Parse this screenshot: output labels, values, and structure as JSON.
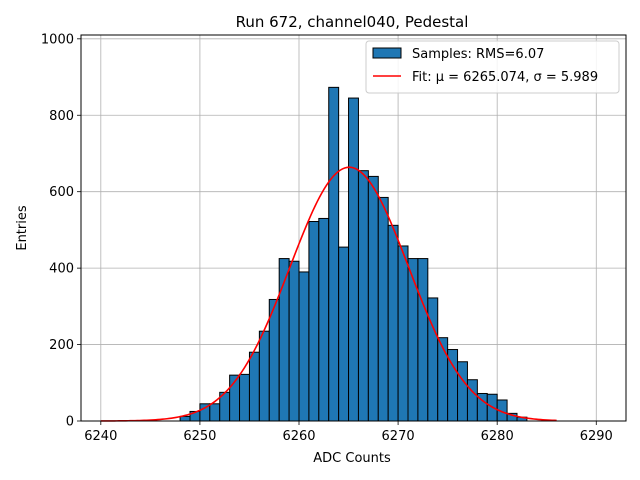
{
  "chart_data": {
    "type": "bar",
    "title": "Run 672, channel040, Pedestal",
    "xlabel": "ADC Counts",
    "ylabel": "Entries",
    "xlim": [
      6238,
      6293
    ],
    "ylim": [
      0,
      1010
    ],
    "x_ticks": [
      6240,
      6250,
      6260,
      6270,
      6280,
      6290
    ],
    "y_ticks": [
      0,
      200,
      400,
      600,
      800,
      1000
    ],
    "grid": true,
    "legend_position": "top-right",
    "histogram": {
      "name": "Samples: RMS=6.07",
      "color": "#1f77b4",
      "bin_edges": [
        6248,
        6249,
        6250,
        6251,
        6252,
        6253,
        6254,
        6255,
        6256,
        6257,
        6258,
        6259,
        6260,
        6261,
        6262,
        6263,
        6264,
        6265,
        6266,
        6267,
        6268,
        6269,
        6270,
        6271,
        6272,
        6273,
        6274,
        6275,
        6276,
        6277,
        6278,
        6279,
        6280,
        6281,
        6282,
        6283
      ],
      "counts": [
        12,
        25,
        45,
        45,
        75,
        120,
        122,
        180,
        235,
        318,
        425,
        418,
        390,
        522,
        530,
        873,
        455,
        845,
        655,
        640,
        585,
        512,
        458,
        425,
        425,
        322,
        218,
        187,
        155,
        108,
        72,
        70,
        55,
        20,
        10
      ]
    },
    "fit": {
      "name": "Fit: μ = 6265.074, σ = 5.989",
      "color": "#ff0000",
      "mu": 6265.074,
      "sigma": 5.989,
      "amplitude": 664,
      "x_range": [
        6240,
        6286
      ]
    }
  }
}
